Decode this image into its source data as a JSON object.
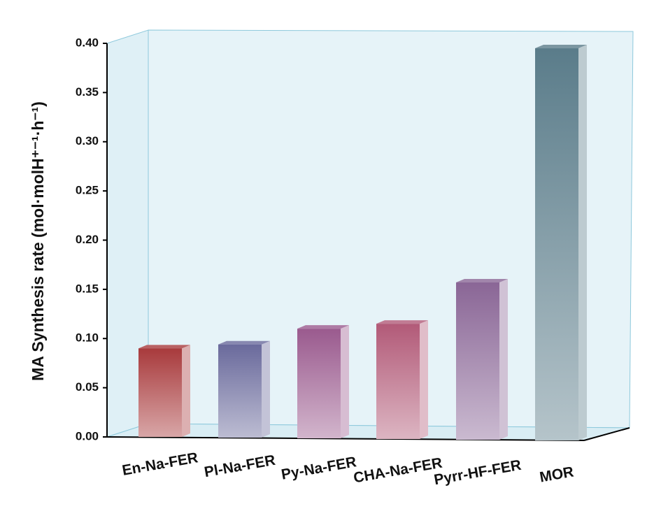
{
  "chart_data": {
    "type": "bar3d",
    "ylabel": "MA Synthesis rate (mol·molH⁺⁻¹·h⁻¹)",
    "categories": [
      "En-Na-FER",
      "Pl-Na-FER",
      "Py-Na-FER",
      "CHA-Na-FER",
      "Pyrr-HF-FER",
      "MOR"
    ],
    "values": [
      0.09,
      0.094,
      0.11,
      0.115,
      0.157,
      0.395
    ],
    "colors": [
      "#a83a3c",
      "#6a6a9c",
      "#9a5a8e",
      "#b25a78",
      "#8a6696",
      "#5a7c8a"
    ],
    "ylim": [
      0,
      0.4
    ],
    "yticks": [
      {
        "value": 0,
        "label": "0.00"
      },
      0.05,
      {
        "value": 0.1,
        "label": "0.10"
      },
      0.15,
      {
        "value": 0.2,
        "label": "0.20"
      },
      0.25,
      {
        "value": 0.3,
        "label": "0.30"
      },
      0.35,
      {
        "value": 0.4,
        "label": "0.40"
      }
    ]
  }
}
